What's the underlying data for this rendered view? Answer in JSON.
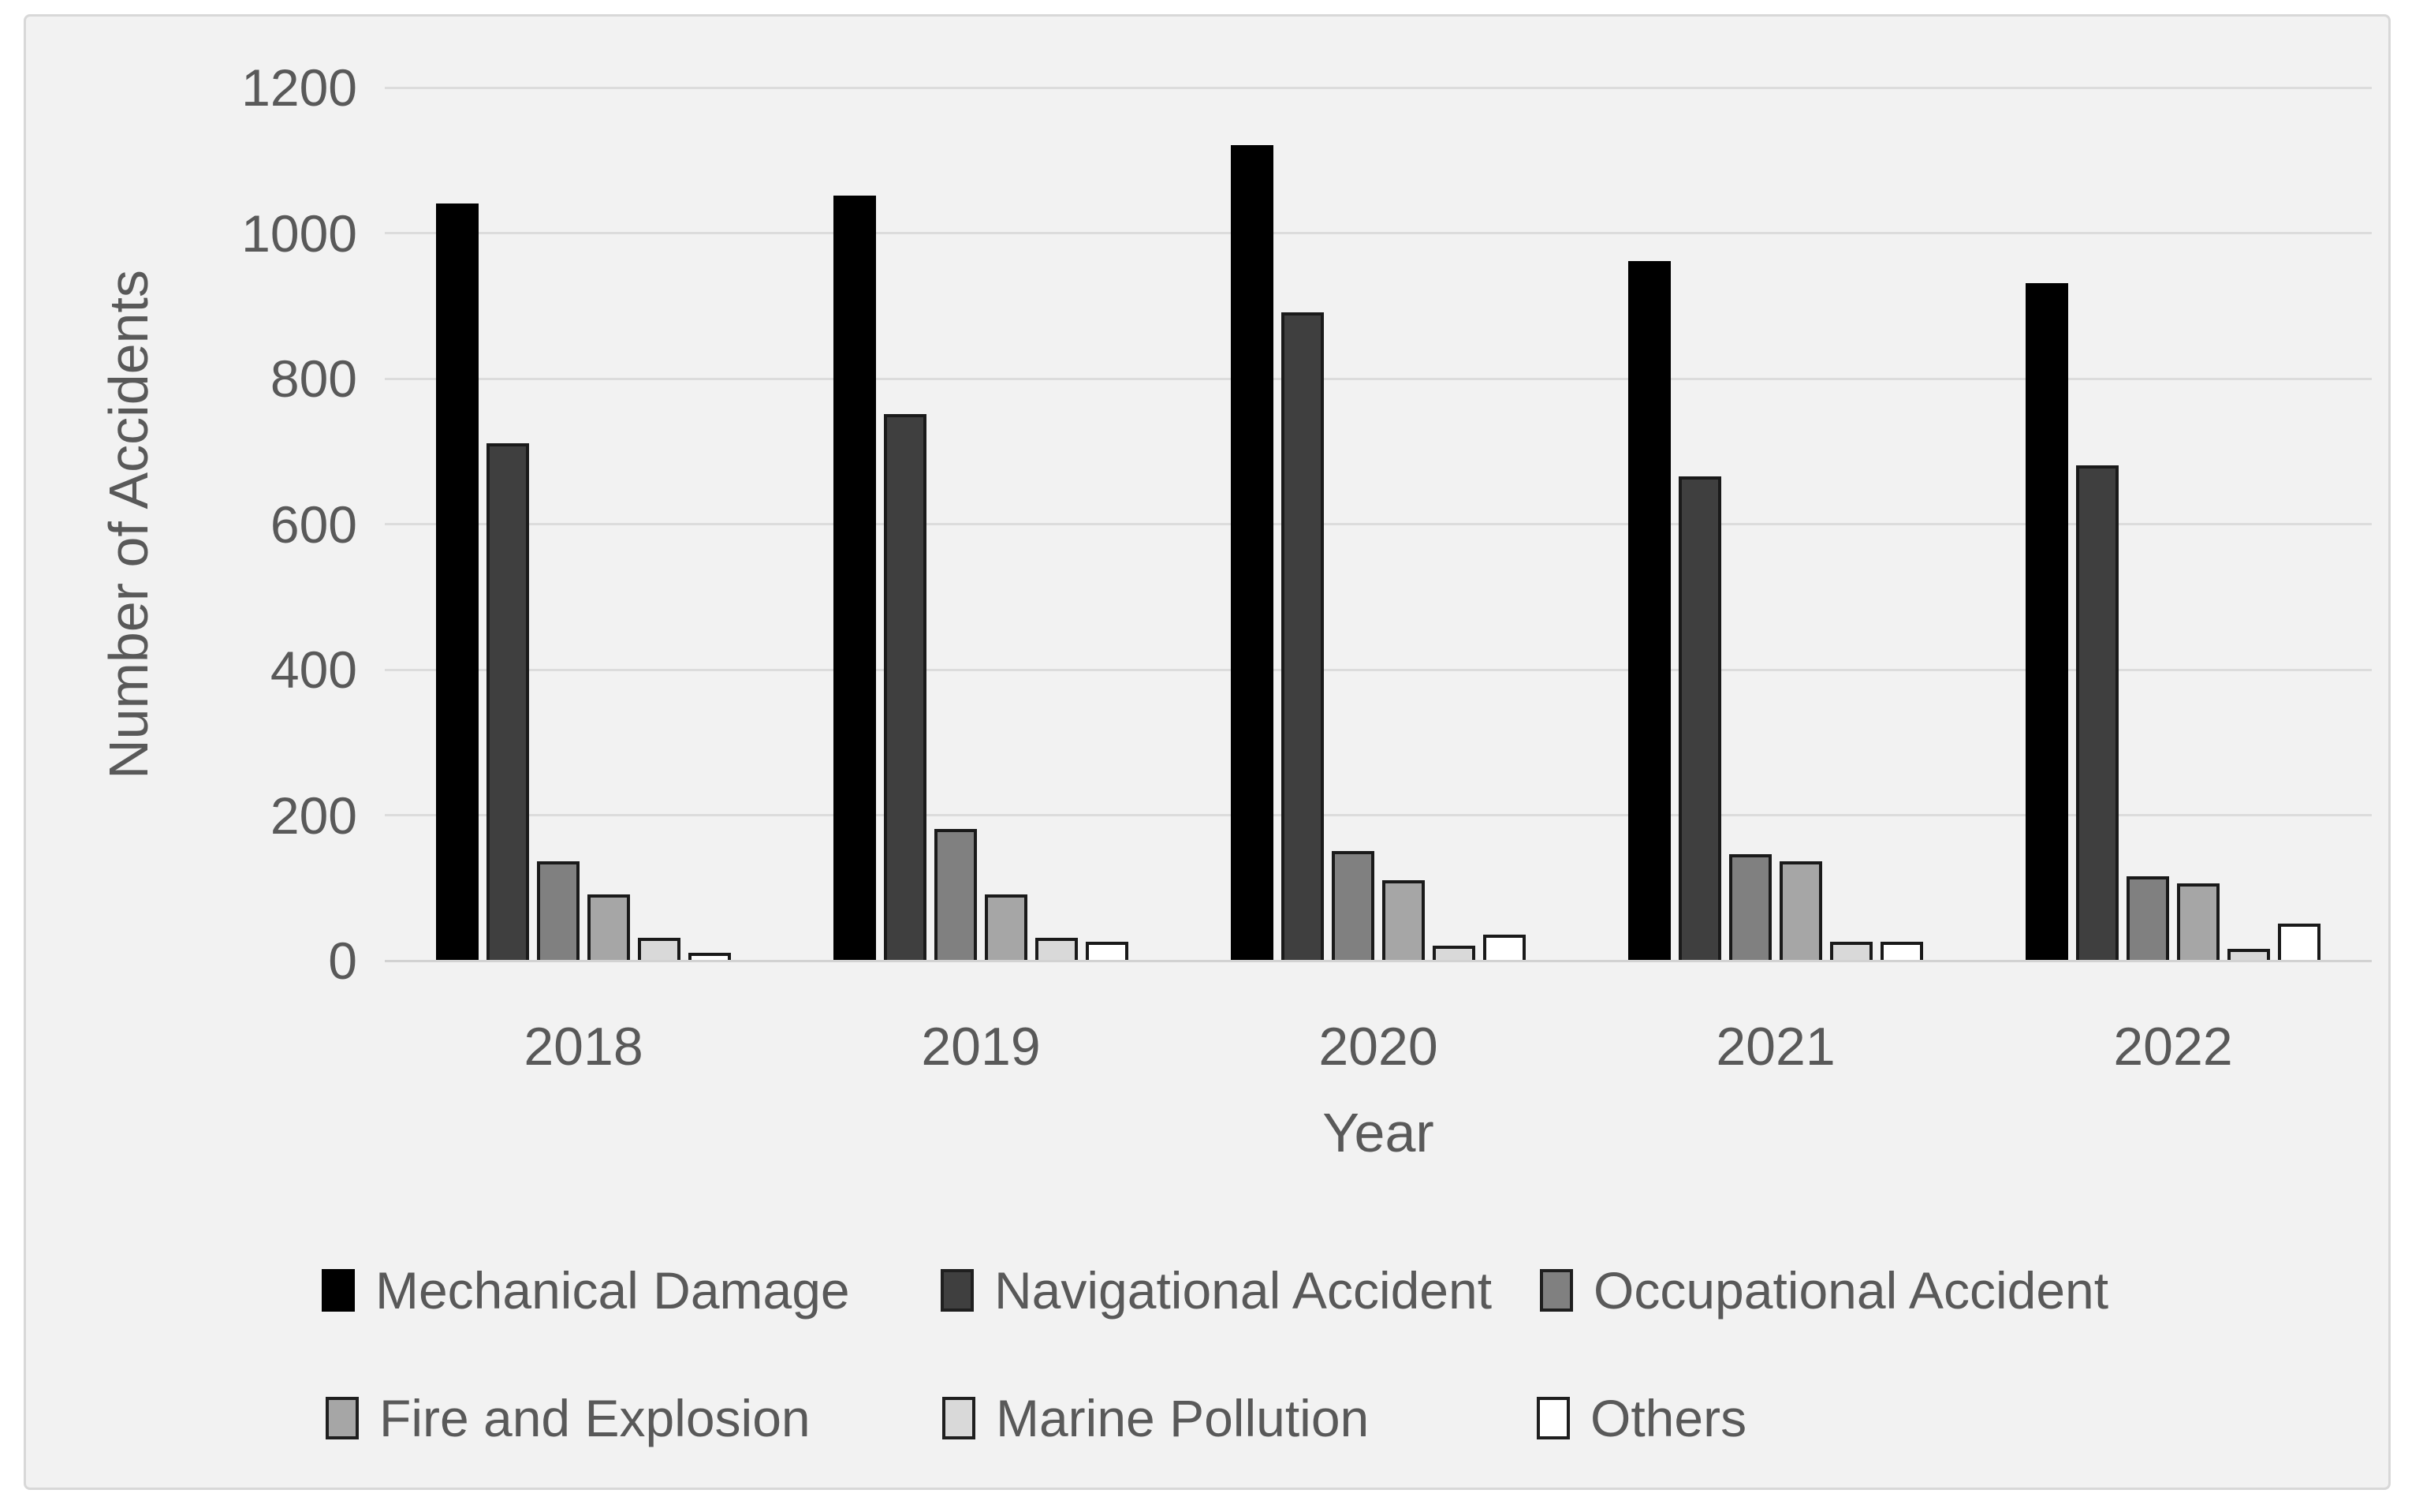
{
  "chart_data": {
    "type": "bar",
    "title": "",
    "xlabel": "Year",
    "ylabel": "Number of Accidents",
    "categories": [
      "2018",
      "2019",
      "2020",
      "2021",
      "2022"
    ],
    "series": [
      {
        "name": "Mechanical Damage",
        "color": "#000000",
        "values": [
          1040,
          1050,
          1120,
          960,
          930
        ]
      },
      {
        "name": "Navigational Accident",
        "color": "#3f3f3f",
        "values": [
          710,
          750,
          890,
          665,
          680
        ]
      },
      {
        "name": "Occupational Accident",
        "color": "#808080",
        "values": [
          135,
          180,
          150,
          145,
          115
        ]
      },
      {
        "name": "Fire and Explosion",
        "color": "#a6a6a6",
        "values": [
          90,
          90,
          110,
          135,
          105
        ]
      },
      {
        "name": "Marine Pollution",
        "color": "#d9d9d9",
        "values": [
          30,
          30,
          20,
          25,
          15
        ]
      },
      {
        "name": "Others",
        "color": "#ffffff",
        "values": [
          10,
          25,
          35,
          25,
          50
        ]
      }
    ],
    "y_ticks": [
      0,
      200,
      400,
      600,
      800,
      1000,
      1200
    ],
    "ylim": [
      0,
      1200
    ],
    "grid": true,
    "legend_position": "bottom",
    "colors": {
      "plot_background": "#f2f2f2",
      "outer_background": "#ffffff",
      "gridline": "#dcdcdc",
      "bar_border": "#1a1a1a",
      "text": "#595959",
      "canvas_border": "#d8d8d8"
    }
  }
}
